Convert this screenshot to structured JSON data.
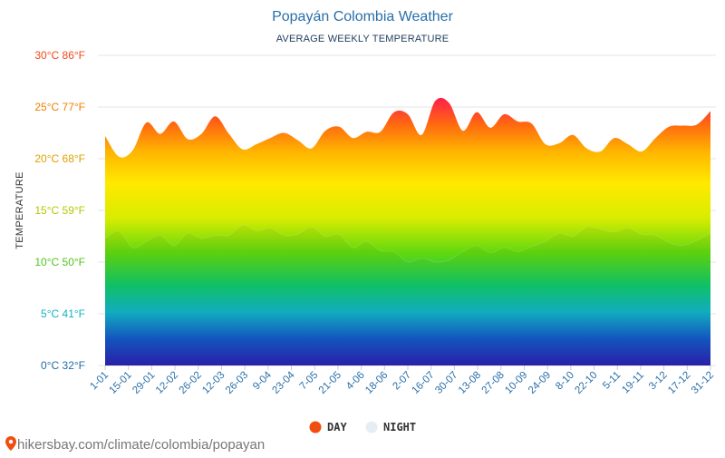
{
  "chart_data": {
    "type": "area",
    "title": "Popayán Colombia Weather",
    "subtitle": "AVERAGE WEEKLY TEMPERATURE",
    "ylabel": "TEMPERATURE",
    "ylim": [
      0,
      30
    ],
    "grid": true,
    "legend_position": "bottom",
    "y_ticks": [
      {
        "value": 0,
        "label": "0°C 32°F",
        "color": "#1d6fa8"
      },
      {
        "value": 5,
        "label": "5°C 41°F",
        "color": "#14b3c4"
      },
      {
        "value": 10,
        "label": "10°C 50°F",
        "color": "#52c41a"
      },
      {
        "value": 15,
        "label": "15°C 59°F",
        "color": "#b5c800"
      },
      {
        "value": 20,
        "label": "20°C 68°F",
        "color": "#e0a000"
      },
      {
        "value": 25,
        "label": "25°C 77°F",
        "color": "#f08000"
      },
      {
        "value": 30,
        "label": "30°C 86°F",
        "color": "#f04a1a"
      }
    ],
    "x_tick_labels": [
      "1-01",
      "15-01",
      "29-01",
      "12-02",
      "26-02",
      "12-03",
      "26-03",
      "9-04",
      "23-04",
      "7-05",
      "21-05",
      "4-06",
      "18-06",
      "2-07",
      "16-07",
      "30-07",
      "13-08",
      "27-08",
      "10-09",
      "24-09",
      "8-10",
      "22-10",
      "5-11",
      "19-11",
      "3-12",
      "17-12",
      "31-12"
    ],
    "series": [
      {
        "name": "DAY",
        "color": "#f04e0e",
        "values": [
          22.2,
          20.2,
          20.8,
          23.5,
          22.4,
          23.6,
          21.9,
          22.4,
          24.1,
          22.4,
          20.9,
          21.4,
          22.0,
          22.5,
          21.8,
          21.0,
          22.7,
          23.1,
          22.0,
          22.6,
          22.6,
          24.5,
          24.3,
          22.3,
          25.6,
          25.4,
          22.7,
          24.5,
          23.0,
          24.3,
          23.6,
          23.4,
          21.4,
          21.5,
          22.3,
          21.0,
          20.7,
          22.0,
          21.4,
          20.7,
          22.0,
          23.1,
          23.2,
          23.3,
          24.6
        ]
      },
      {
        "name": "NIGHT",
        "color": "#e6eef4",
        "values": [
          12.3,
          13.0,
          11.4,
          12.0,
          12.6,
          11.6,
          12.8,
          12.3,
          12.6,
          12.6,
          13.6,
          13.0,
          13.3,
          12.6,
          12.7,
          13.4,
          12.5,
          12.7,
          11.4,
          12.0,
          11.1,
          11.0,
          10.0,
          10.4,
          10.0,
          10.2,
          11.0,
          11.6,
          10.9,
          11.4,
          11.0,
          11.5,
          12.0,
          12.8,
          12.5,
          13.4,
          13.2,
          12.9,
          13.3,
          12.7,
          12.6,
          11.9,
          11.6,
          12.1,
          12.8
        ]
      }
    ]
  },
  "legend": {
    "items": [
      {
        "label": "DAY",
        "color": "#f04e0e"
      },
      {
        "label": "NIGHT",
        "color": "#e6eef4"
      }
    ]
  },
  "footer": {
    "source": "hikersbay.com/climate/colombia/popayan",
    "pin_color": "#f04e0e"
  }
}
